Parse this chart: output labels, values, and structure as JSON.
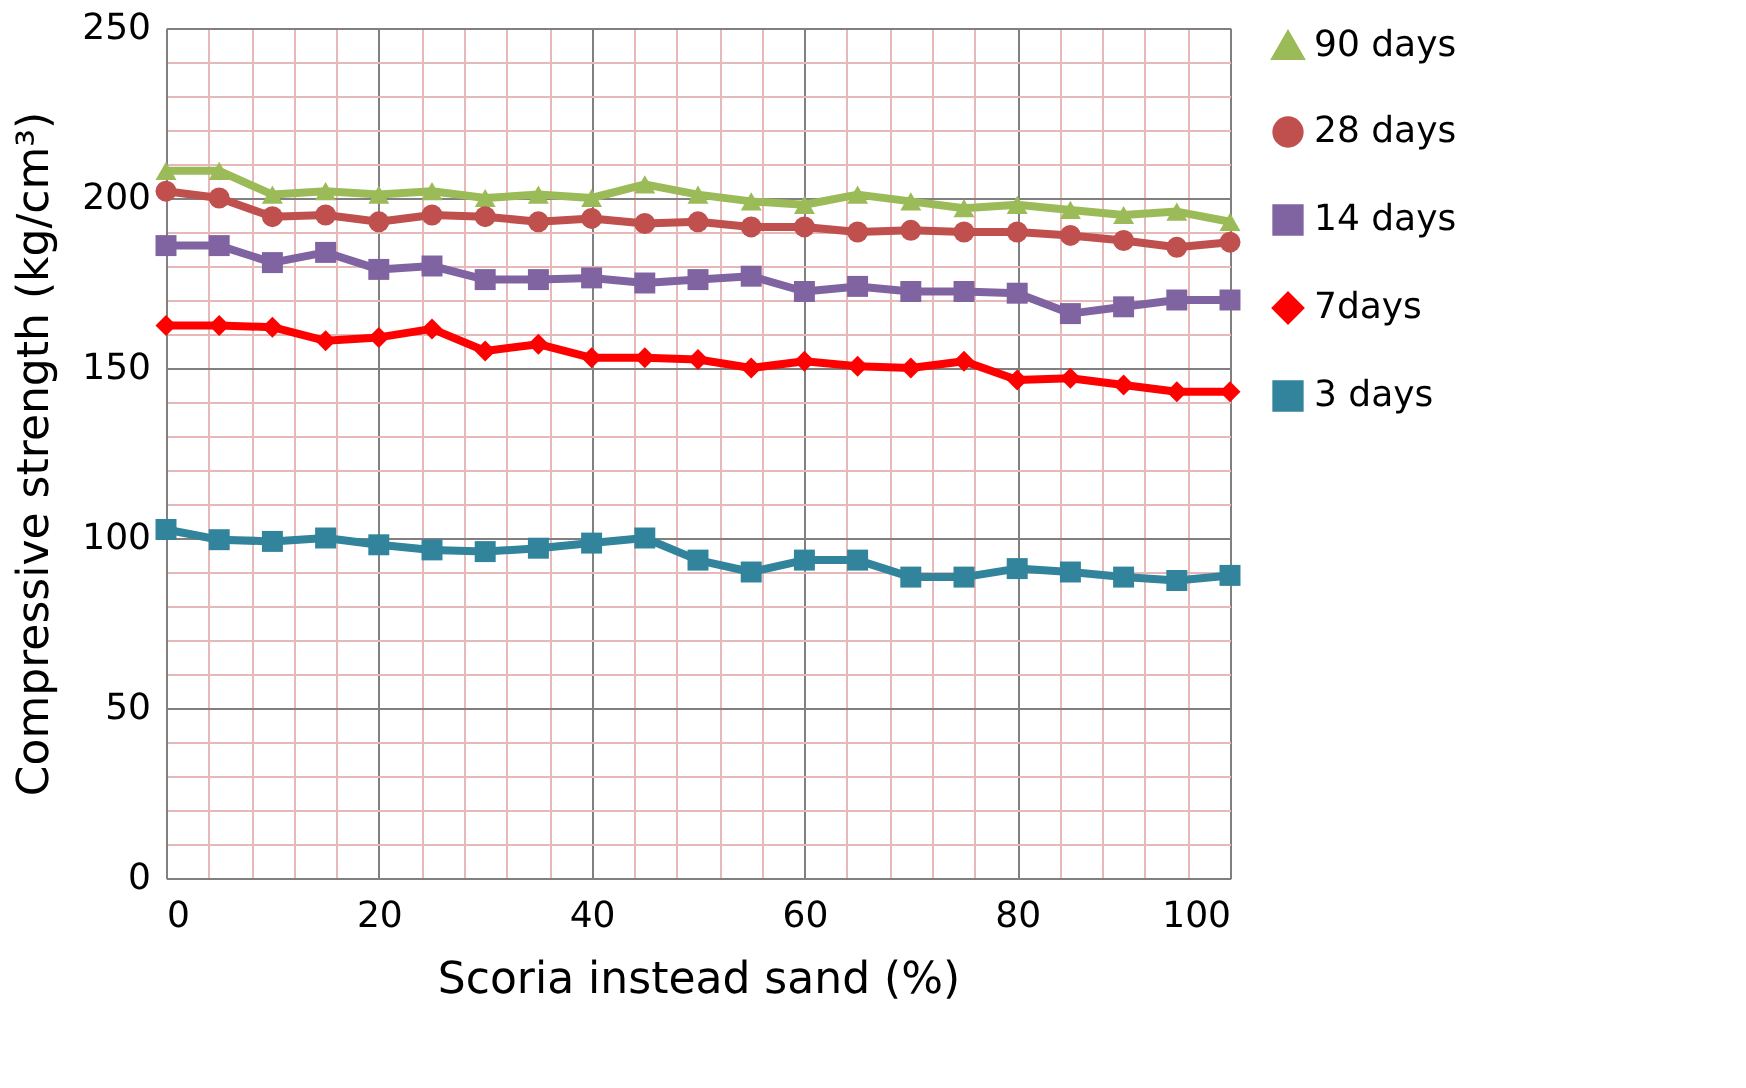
{
  "chart_data": {
    "type": "line",
    "xlabel": "Scoria instead sand (%)",
    "ylabel": "Compressive strength (kg/cm³)",
    "x": [
      0,
      5,
      10,
      15,
      20,
      25,
      30,
      35,
      40,
      45,
      50,
      55,
      60,
      65,
      70,
      75,
      80,
      85,
      90,
      95,
      100
    ],
    "series": [
      {
        "name": "90 days",
        "color": "#9bbb59",
        "marker": "triangle",
        "values": [
          208,
          208,
          201,
          202,
          201,
          202,
          200,
          201,
          200,
          204,
          201,
          199,
          198,
          201,
          199,
          197,
          198,
          196.5,
          195,
          196,
          193
        ]
      },
      {
        "name": "28 days",
        "color": "#c0504d",
        "marker": "circle",
        "values": [
          202,
          200,
          194.5,
          195,
          193,
          195,
          194.5,
          193,
          194,
          192.5,
          193,
          191.5,
          191.5,
          190,
          190.5,
          190,
          190,
          189,
          187.5,
          185.5,
          187
        ]
      },
      {
        "name": "14 days",
        "color": "#8064a2",
        "marker": "square",
        "values": [
          186,
          186,
          181,
          184,
          179,
          180,
          176,
          176,
          176.5,
          175,
          176,
          177,
          172.5,
          174,
          172.5,
          172.5,
          172,
          166,
          168,
          170,
          170
        ]
      },
      {
        "name": "7days",
        "color": "#ff0000",
        "marker": "diamond",
        "values": [
          162.5,
          162.5,
          162,
          158,
          159,
          161.5,
          155,
          157,
          153,
          153,
          152.5,
          150,
          152,
          150.5,
          150,
          152,
          146.5,
          147,
          145,
          143,
          143
        ]
      },
      {
        "name": "3 days",
        "color": "#31849b",
        "marker": "square",
        "values": [
          102.5,
          99.5,
          99,
          100,
          98,
          96.5,
          96,
          97,
          98.5,
          100,
          93.5,
          90,
          93.5,
          93.5,
          88.5,
          88.5,
          91,
          90,
          88.5,
          87.5,
          89
        ]
      }
    ],
    "xlim": [
      0,
      100
    ],
    "xticks": [
      0,
      {
        "value": 4,
        "label": null
      },
      {
        "value": 8,
        "label": null
      },
      {
        "value": 12,
        "label": null
      },
      {
        "value": 16,
        "label": null
      },
      20,
      {
        "value": 24,
        "label": null
      },
      {
        "value": 28,
        "label": null
      },
      {
        "value": 32,
        "label": null
      },
      {
        "value": 36,
        "label": null
      },
      40,
      {
        "value": 44,
        "label": null
      },
      {
        "value": 48,
        "label": null
      },
      {
        "value": 52,
        "label": null
      },
      {
        "value": 56,
        "label": null
      },
      60,
      {
        "value": 64,
        "label": null
      },
      {
        "value": 68,
        "label": null
      },
      {
        "value": 72,
        "label": null
      },
      {
        "value": 76,
        "label": null
      },
      80,
      {
        "value": 84,
        "label": null
      },
      {
        "value": 88,
        "label": null
      },
      {
        "value": 92,
        "label": null
      },
      {
        "value": 96,
        "label": null
      },
      100
    ],
    "ylim": [
      0,
      250
    ],
    "yticks": [
      0,
      {
        "value": 10,
        "label": null
      },
      {
        "value": 20,
        "label": null
      },
      {
        "value": 30,
        "label": null
      },
      {
        "value": 40,
        "label": null
      },
      50,
      {
        "value": 60,
        "label": null
      },
      {
        "value": 70,
        "label": null
      },
      {
        "value": 80,
        "label": null
      },
      {
        "value": 90,
        "label": null
      },
      100,
      {
        "value": 110,
        "label": null
      },
      {
        "value": 120,
        "label": null
      },
      {
        "value": 130,
        "label": null
      },
      {
        "value": 140,
        "label": null
      },
      150,
      {
        "value": 160,
        "label": null
      },
      {
        "value": 170,
        "label": null
      },
      {
        "value": 180,
        "label": null
      },
      {
        "value": 190,
        "label": null
      },
      200,
      {
        "value": 210,
        "label": null
      },
      {
        "value": 220,
        "label": null
      },
      {
        "value": 230,
        "label": null
      },
      {
        "value": 240,
        "label": null
      },
      250
    ],
    "grid": true,
    "legend": "right",
    "line_style": "solid"
  }
}
